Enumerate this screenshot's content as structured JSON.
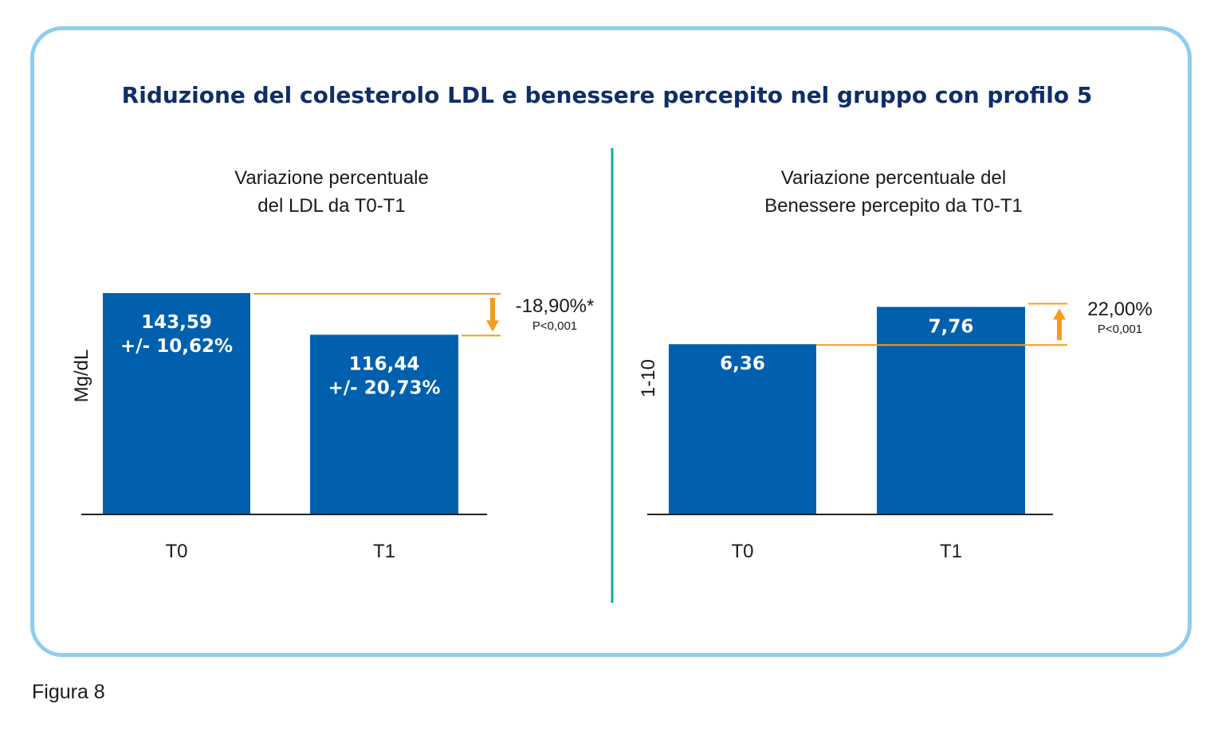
{
  "title": "Riduzione del colesterolo LDL e benessere percepito nel gruppo con profilo 5",
  "caption": "Figura 8",
  "colors": {
    "bar": "#0060ae",
    "bar_label": "#ffffff",
    "reference_line": "#f39c1f",
    "arrow": "#f39c1f",
    "divider": "#1aa59a",
    "frame": "#8fcdee",
    "title": "#0f2e68",
    "axis": "#222222"
  },
  "chart_data": [
    {
      "type": "bar",
      "subtitle_lines": [
        "Variazione percentuale",
        "del LDL da T0-T1"
      ],
      "ylabel": "Mg/dL",
      "categories": [
        "T0",
        "T1"
      ],
      "values": [
        143.59,
        116.44
      ],
      "value_labels": [
        [
          "143,59",
          "+/- 10,62%"
        ],
        [
          "116,44",
          "+/- 20,73%"
        ]
      ],
      "ylim": [
        0,
        143.59
      ],
      "grid": false,
      "annotation": {
        "direction": "down",
        "change": "-18,90%*",
        "pvalue": "P<0,001"
      }
    },
    {
      "type": "bar",
      "subtitle_lines": [
        "Variazione percentuale del",
        "Benessere percepito da T0-T1"
      ],
      "ylabel": "1-10",
      "categories": [
        "T0",
        "T1"
      ],
      "values": [
        6.36,
        7.76
      ],
      "value_labels": [
        [
          "6,36"
        ],
        [
          "7,76"
        ]
      ],
      "ylim": [
        0,
        8.28
      ],
      "grid": false,
      "annotation": {
        "direction": "up",
        "change": "22,00%",
        "pvalue": "P<0,001"
      }
    }
  ]
}
